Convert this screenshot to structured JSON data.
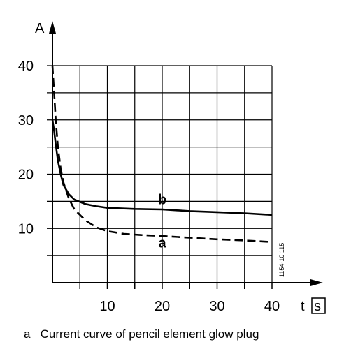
{
  "chart_data": {
    "type": "line",
    "ylabel": "A",
    "xlabel": "t",
    "xunit": "s",
    "xlim": [
      0,
      40
    ],
    "ylim": [
      0,
      40
    ],
    "x_ticks": [
      10,
      20,
      30,
      40
    ],
    "y_ticks": [
      10,
      20,
      30,
      40
    ],
    "grid": true,
    "caption": "a   Current curve of pencil element glow plug",
    "code": "1154-10 115",
    "series": [
      {
        "name": "a",
        "style": "dashed",
        "points": [
          [
            0,
            40
          ],
          [
            0.3,
            35
          ],
          [
            0.6,
            30
          ],
          [
            1,
            25
          ],
          [
            1.5,
            21
          ],
          [
            2,
            18.5
          ],
          [
            3,
            15.5
          ],
          [
            4,
            13.5
          ],
          [
            6,
            11.5
          ],
          [
            8,
            10.2
          ],
          [
            10,
            9.5
          ],
          [
            13,
            9
          ],
          [
            16,
            8.8
          ],
          [
            20,
            8.6
          ],
          [
            25,
            8.3
          ],
          [
            30,
            8
          ],
          [
            35,
            7.8
          ],
          [
            40,
            7.5
          ]
        ]
      },
      {
        "name": "b",
        "style": "solid",
        "points": [
          [
            0,
            30
          ],
          [
            0.3,
            28
          ],
          [
            0.6,
            25.5
          ],
          [
            1,
            22.5
          ],
          [
            1.5,
            20
          ],
          [
            2,
            18
          ],
          [
            3,
            16.3
          ],
          [
            4,
            15.3
          ],
          [
            6,
            14.5
          ],
          [
            8,
            14.1
          ],
          [
            10,
            13.8
          ],
          [
            15,
            13.6
          ],
          [
            20,
            13.5
          ],
          [
            25,
            13.2
          ],
          [
            30,
            13
          ],
          [
            35,
            12.8
          ],
          [
            40,
            12.5
          ]
        ]
      }
    ]
  }
}
